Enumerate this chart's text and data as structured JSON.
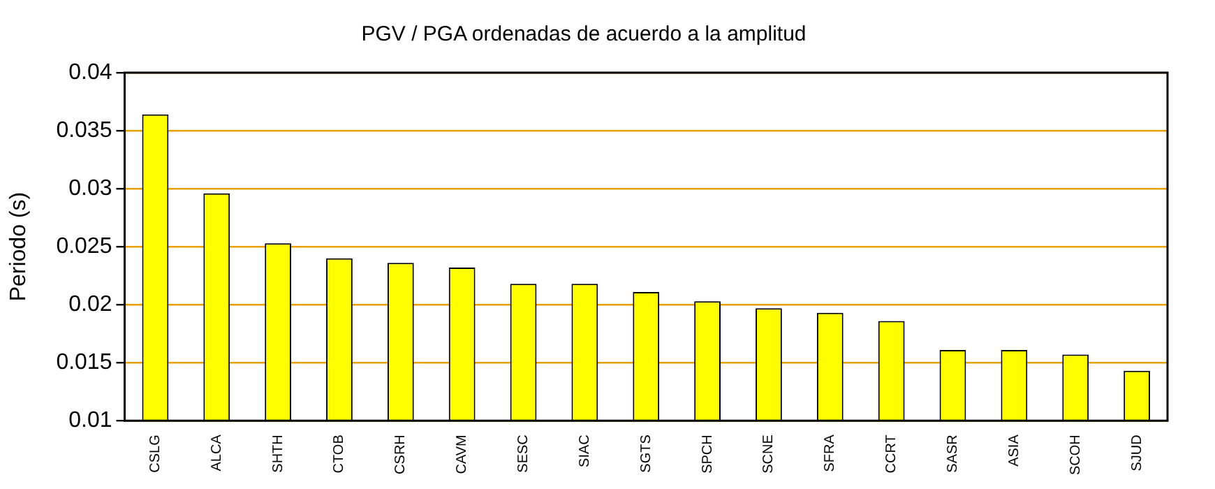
{
  "chart_data": {
    "type": "bar",
    "title": "PGV / PGA ordenadas de acuerdo a la amplitud",
    "ylabel": "Periodo (s)",
    "categories": [
      "CSLG",
      "ALCA",
      "SHTH",
      "CTOB",
      "CSRH",
      "CAVM",
      "SESC",
      "SIAC",
      "SGTS",
      "SPCH",
      "SCNE",
      "SFRA",
      "CCRT",
      "SASR",
      "ASIA",
      "SCOH",
      "SJUD"
    ],
    "values": [
      0.0364,
      0.0296,
      0.0253,
      0.024,
      0.0236,
      0.0232,
      0.0218,
      0.0218,
      0.0211,
      0.0203,
      0.0197,
      0.0193,
      0.0186,
      0.0161,
      0.0161,
      0.0157,
      0.0143
    ],
    "color": "#ffff00",
    "ylim": [
      0.01,
      0.04
    ],
    "yticks": [
      0.01,
      0.015,
      0.02,
      0.025,
      0.03,
      0.035,
      0.04
    ],
    "grid": "y",
    "legend": false
  }
}
